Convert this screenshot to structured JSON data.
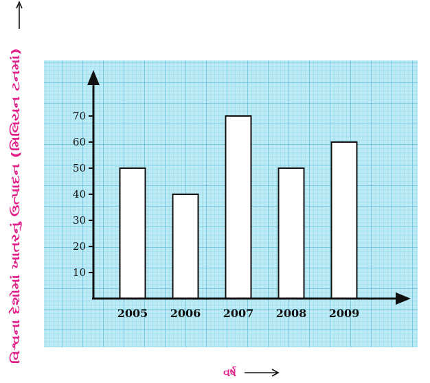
{
  "chart_data": {
    "type": "bar",
    "categories": [
      "2005",
      "2006",
      "2007",
      "2008",
      "2009"
    ],
    "values": [
      50,
      40,
      70,
      50,
      60
    ],
    "yticks": [
      10,
      20,
      30,
      40,
      50,
      60,
      70
    ],
    "ylim": [
      0,
      80
    ],
    "xlabel": "વર્ષ",
    "ylabel": "વિશ્વના દેશોમાં ખાતરનું ઉત્પાદન (મિલિયન ટનમાં)",
    "grid": true,
    "bar_fill": "#ffffff",
    "bar_stroke": "#111111",
    "grid_color": "#7fd3e6",
    "grid_background": "#bdeaf5",
    "axis_title_color": "#e0218a"
  }
}
